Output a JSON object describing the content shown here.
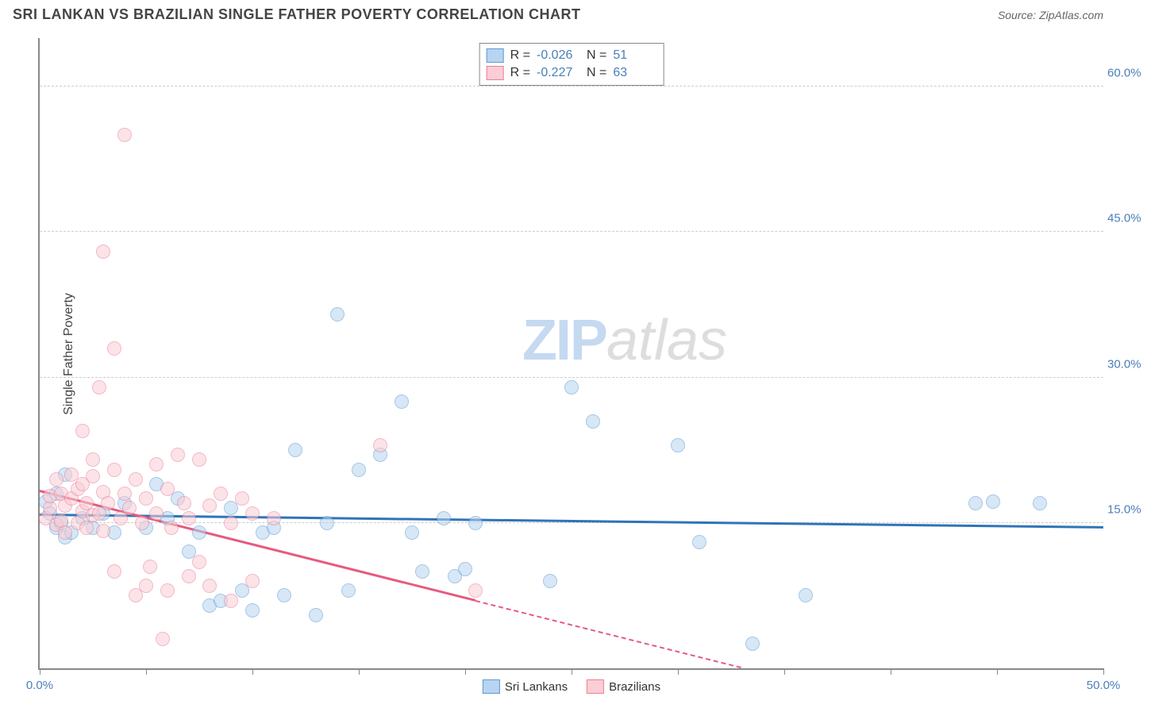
{
  "header": {
    "title": "SRI LANKAN VS BRAZILIAN SINGLE FATHER POVERTY CORRELATION CHART",
    "source": "Source: ZipAtlas.com"
  },
  "chart": {
    "type": "scatter",
    "ylabel": "Single Father Poverty",
    "xlim": [
      0,
      50
    ],
    "ylim": [
      0,
      65
    ],
    "xtick_positions": [
      0,
      5,
      10,
      15,
      20,
      25,
      30,
      35,
      40,
      45,
      50
    ],
    "xtick_labels": {
      "0": "0.0%",
      "50": "50.0%"
    },
    "ytick_positions": [
      15,
      30,
      45,
      60
    ],
    "ytick_labels": {
      "15": "15.0%",
      "30": "30.0%",
      "45": "45.0%",
      "60": "60.0%"
    },
    "axis_label_color": "#4a7ebb",
    "background_color": "#ffffff",
    "grid_color": "#cccccc",
    "marker_radius": 9,
    "marker_border_width": 1.5,
    "watermark": {
      "part1": "ZIP",
      "part2": "atlas"
    },
    "series": [
      {
        "name": "Sri Lankans",
        "fill": "#b8d4f0",
        "stroke": "#5b9bd5",
        "fill_opacity": 0.55,
        "trend": {
          "x1": 0,
          "y1": 15.8,
          "x2": 50,
          "y2": 14.5,
          "color": "#2e75b6",
          "dash_after_x": null
        },
        "stats": {
          "R": "-0.026",
          "N": "51"
        },
        "points": [
          [
            0.3,
            17.2
          ],
          [
            0.5,
            16.0
          ],
          [
            0.8,
            18.0
          ],
          [
            0.8,
            14.5
          ],
          [
            1.0,
            15.0
          ],
          [
            1.2,
            20.0
          ],
          [
            1.2,
            13.5
          ],
          [
            1.5,
            14.0
          ],
          [
            2.0,
            15.5
          ],
          [
            2.5,
            14.5
          ],
          [
            3.0,
            16.0
          ],
          [
            3.5,
            14.0
          ],
          [
            4.0,
            17.0
          ],
          [
            5.0,
            14.5
          ],
          [
            5.5,
            19.0
          ],
          [
            6.0,
            15.5
          ],
          [
            6.5,
            17.5
          ],
          [
            7.0,
            12.0
          ],
          [
            7.5,
            14.0
          ],
          [
            8.0,
            6.5
          ],
          [
            8.5,
            7.0
          ],
          [
            9.0,
            16.5
          ],
          [
            9.5,
            8.0
          ],
          [
            10.0,
            6.0
          ],
          [
            10.5,
            14.0
          ],
          [
            11.0,
            14.5
          ],
          [
            11.5,
            7.5
          ],
          [
            12.0,
            22.5
          ],
          [
            13.0,
            5.5
          ],
          [
            13.5,
            15.0
          ],
          [
            14.0,
            36.5
          ],
          [
            14.5,
            8.0
          ],
          [
            15.0,
            20.5
          ],
          [
            16.0,
            22.0
          ],
          [
            17.0,
            27.5
          ],
          [
            17.5,
            14.0
          ],
          [
            18.0,
            10.0
          ],
          [
            19.0,
            15.5
          ],
          [
            19.5,
            9.5
          ],
          [
            20.0,
            10.2
          ],
          [
            20.5,
            15.0
          ],
          [
            24.0,
            9.0
          ],
          [
            25.0,
            29.0
          ],
          [
            26.0,
            25.5
          ],
          [
            30.0,
            23.0
          ],
          [
            31.0,
            13.0
          ],
          [
            33.5,
            2.5
          ],
          [
            36.0,
            7.5
          ],
          [
            44.0,
            17.0
          ],
          [
            44.8,
            17.2
          ],
          [
            47.0,
            17.0
          ]
        ]
      },
      {
        "name": "Brazilians",
        "fill": "#fbcdd5",
        "stroke": "#e87f9a",
        "fill_opacity": 0.55,
        "trend": {
          "x1": 0,
          "y1": 18.2,
          "x2": 33,
          "y2": 0,
          "color": "#e55b7e",
          "dash_after_x": 20.5
        },
        "stats": {
          "R": "-0.227",
          "N": "63"
        },
        "points": [
          [
            0.3,
            15.5
          ],
          [
            0.5,
            16.5
          ],
          [
            0.5,
            17.8
          ],
          [
            0.8,
            14.8
          ],
          [
            0.8,
            19.5
          ],
          [
            1.0,
            18.0
          ],
          [
            1.0,
            15.2
          ],
          [
            1.2,
            16.8
          ],
          [
            1.2,
            14.0
          ],
          [
            1.5,
            17.5
          ],
          [
            1.5,
            20.0
          ],
          [
            1.8,
            15.0
          ],
          [
            1.8,
            18.5
          ],
          [
            2.0,
            16.2
          ],
          [
            2.0,
            19.0
          ],
          [
            2.0,
            24.5
          ],
          [
            2.2,
            14.5
          ],
          [
            2.2,
            17.0
          ],
          [
            2.5,
            21.5
          ],
          [
            2.5,
            15.8
          ],
          [
            2.5,
            19.8
          ],
          [
            2.8,
            16.0
          ],
          [
            2.8,
            29.0
          ],
          [
            3.0,
            18.2
          ],
          [
            3.0,
            14.2
          ],
          [
            3.0,
            43.0
          ],
          [
            3.2,
            17.0
          ],
          [
            3.5,
            20.5
          ],
          [
            3.5,
            10.0
          ],
          [
            3.5,
            33.0
          ],
          [
            3.8,
            15.5
          ],
          [
            4.0,
            55.0
          ],
          [
            4.0,
            18.0
          ],
          [
            4.2,
            16.5
          ],
          [
            4.5,
            7.5
          ],
          [
            4.5,
            19.5
          ],
          [
            4.8,
            15.0
          ],
          [
            5.0,
            8.5
          ],
          [
            5.0,
            17.5
          ],
          [
            5.2,
            10.5
          ],
          [
            5.5,
            21.0
          ],
          [
            5.5,
            16.0
          ],
          [
            5.8,
            3.0
          ],
          [
            6.0,
            18.5
          ],
          [
            6.0,
            8.0
          ],
          [
            6.2,
            14.5
          ],
          [
            6.5,
            22.0
          ],
          [
            6.8,
            17.0
          ],
          [
            7.0,
            9.5
          ],
          [
            7.0,
            15.5
          ],
          [
            7.5,
            21.5
          ],
          [
            7.5,
            11.0
          ],
          [
            8.0,
            16.8
          ],
          [
            8.0,
            8.5
          ],
          [
            8.5,
            18.0
          ],
          [
            9.0,
            7.0
          ],
          [
            9.0,
            15.0
          ],
          [
            9.5,
            17.5
          ],
          [
            10.0,
            9.0
          ],
          [
            10.0,
            16.0
          ],
          [
            11.0,
            15.5
          ],
          [
            16.0,
            23.0
          ],
          [
            20.5,
            8.0
          ]
        ]
      }
    ],
    "legend": [
      {
        "label": "Sri Lankans",
        "fill": "#b8d4f0",
        "stroke": "#5b9bd5"
      },
      {
        "label": "Brazilians",
        "fill": "#fbcdd5",
        "stroke": "#e87f9a"
      }
    ]
  }
}
